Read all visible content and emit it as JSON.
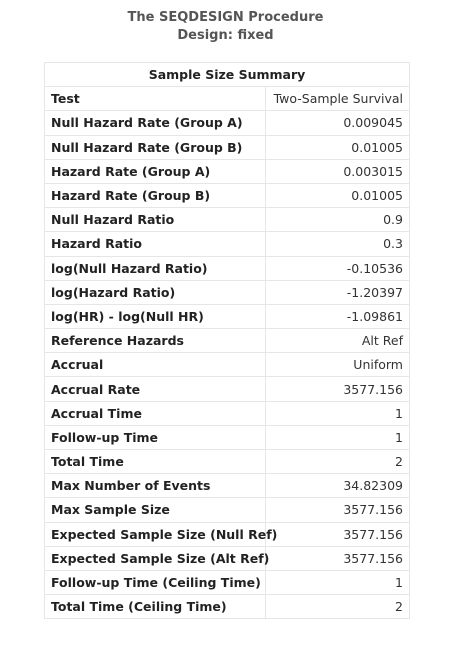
{
  "titles": [
    "The SEQDESIGN Procedure",
    "Design: fixed"
  ],
  "table": {
    "caption": "Sample Size Summary",
    "rows": [
      {
        "label": "Test",
        "value": "Two-Sample Survival"
      },
      {
        "label": "Null Hazard Rate (Group A)",
        "value": "0.009045"
      },
      {
        "label": "Null Hazard Rate (Group B)",
        "value": "0.01005"
      },
      {
        "label": "Hazard Rate (Group A)",
        "value": "0.003015"
      },
      {
        "label": "Hazard Rate (Group B)",
        "value": "0.01005"
      },
      {
        "label": "Null Hazard Ratio",
        "value": "0.9"
      },
      {
        "label": "Hazard Ratio",
        "value": "0.3"
      },
      {
        "label": "log(Null Hazard Ratio)",
        "value": "-0.10536"
      },
      {
        "label": "log(Hazard Ratio)",
        "value": "-1.20397"
      },
      {
        "label": "log(HR) - log(Null HR)",
        "value": "-1.09861"
      },
      {
        "label": "Reference Hazards",
        "value": "Alt Ref"
      },
      {
        "label": "Accrual",
        "value": "Uniform"
      },
      {
        "label": "Accrual Rate",
        "value": "3577.156"
      },
      {
        "label": "Accrual Time",
        "value": "1"
      },
      {
        "label": "Follow-up Time",
        "value": "1"
      },
      {
        "label": "Total Time",
        "value": "2"
      },
      {
        "label": "Max Number of Events",
        "value": "34.82309"
      },
      {
        "label": "Max Sample Size",
        "value": "3577.156"
      },
      {
        "label": "Expected Sample Size (Null Ref)",
        "value": "3577.156"
      },
      {
        "label": "Expected Sample Size (Alt Ref)",
        "value": "3577.156"
      },
      {
        "label": "Follow-up Time (Ceiling Time)",
        "value": "1"
      },
      {
        "label": "Total Time (Ceiling Time)",
        "value": "2"
      }
    ]
  }
}
